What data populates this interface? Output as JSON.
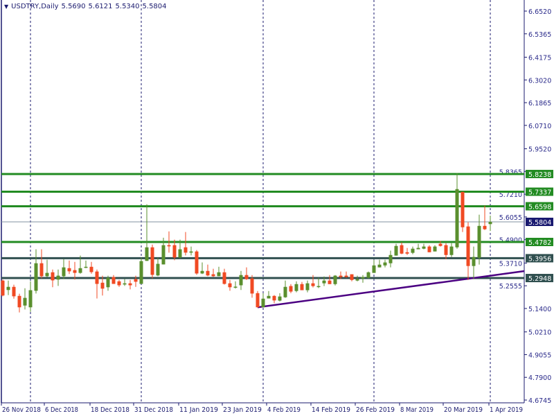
{
  "header": {
    "symbol": "USDTRY,Daily",
    "open": "5.5690",
    "high": "5.6121",
    "low": "5.5340",
    "close": "5.5804",
    "collapse_icon": "triangle-down-icon"
  },
  "colors": {
    "bull": "#5a8f2e",
    "bear": "#f04a23",
    "resistance": "#228b22",
    "support": "#2f4f4f",
    "trendline": "#4b0082",
    "current_price": "#191970",
    "grid": "#1a1a6e",
    "axis_text": "#2a2a8a"
  },
  "chart_data": {
    "type": "candlestick",
    "symbol": "USDTRY",
    "timeframe": "Daily",
    "ylim": [
      4.6745,
      6.652
    ],
    "y_ticks": [
      "6.6520",
      "6.5365",
      "6.4175",
      "6.3020",
      "6.1865",
      "6.0710",
      "5.9520",
      "5.8365",
      "5.7210",
      "5.6055",
      "5.4900",
      "5.3710",
      "5.2555",
      "5.1400",
      "5.0210",
      "4.9055",
      "4.7900",
      "4.6745"
    ],
    "x_tick_labels": [
      "26 Nov 2018",
      "6 Dec 2018",
      "18 Dec 2018",
      "31 Dec 2018",
      "11 Jan 2019",
      "23 Jan 2019",
      "4 Feb 2019",
      "14 Feb 2019",
      "26 Feb 2019",
      "8 Mar 2019",
      "20 Mar 2019",
      "1 Apr 2019"
    ],
    "ohlc": [
      [
        5.282,
        5.287,
        5.202,
        5.206
      ],
      [
        5.234,
        5.282,
        5.208,
        5.25
      ],
      [
        5.25,
        5.261,
        5.19,
        5.202
      ],
      [
        5.204,
        5.215,
        5.12,
        5.146
      ],
      [
        5.155,
        5.243,
        5.135,
        5.194
      ],
      [
        5.146,
        5.278,
        5.123,
        5.233
      ],
      [
        5.23,
        5.441,
        5.216,
        5.37
      ],
      [
        5.37,
        5.441,
        5.293,
        5.304
      ],
      [
        5.304,
        5.388,
        5.3,
        5.321
      ],
      [
        5.324,
        5.338,
        5.248,
        5.283
      ],
      [
        5.287,
        5.338,
        5.255,
        5.307
      ],
      [
        5.304,
        5.391,
        5.289,
        5.349
      ],
      [
        5.345,
        5.384,
        5.315,
        5.329
      ],
      [
        5.335,
        5.377,
        5.287,
        5.321
      ],
      [
        5.321,
        5.409,
        5.317,
        5.345
      ],
      [
        5.349,
        5.384,
        5.345,
        5.352
      ],
      [
        5.352,
        5.377,
        5.317,
        5.325
      ],
      [
        5.328,
        5.338,
        5.191,
        5.265
      ],
      [
        5.271,
        5.307,
        5.206,
        5.241
      ],
      [
        5.248,
        5.307,
        5.23,
        5.296
      ],
      [
        5.3,
        5.31,
        5.265,
        5.265
      ],
      [
        5.278,
        5.285,
        5.25,
        5.258
      ],
      [
        5.262,
        5.289,
        5.255,
        5.268
      ],
      [
        5.268,
        5.285,
        5.237,
        5.258
      ],
      [
        5.289,
        5.307,
        5.25,
        5.276
      ],
      [
        5.265,
        5.399,
        5.265,
        5.381
      ],
      [
        5.382,
        5.67,
        5.382,
        5.451
      ],
      [
        5.451,
        5.465,
        5.293,
        5.311
      ],
      [
        5.308,
        5.398,
        5.304,
        5.367
      ],
      [
        5.364,
        5.5,
        5.364,
        5.462
      ],
      [
        5.462,
        5.532,
        5.424,
        5.456
      ],
      [
        5.462,
        5.49,
        5.385,
        5.399
      ],
      [
        5.399,
        5.49,
        5.396,
        5.441
      ],
      [
        5.451,
        5.529,
        5.41,
        5.424
      ],
      [
        5.424,
        5.455,
        5.41,
        5.43
      ],
      [
        5.43,
        5.437,
        5.311,
        5.318
      ],
      [
        5.318,
        5.374,
        5.315,
        5.331
      ],
      [
        5.331,
        5.363,
        5.304,
        5.308
      ],
      [
        5.314,
        5.342,
        5.301,
        5.304
      ],
      [
        5.304,
        5.352,
        5.304,
        5.324
      ],
      [
        5.324,
        5.342,
        5.262,
        5.265
      ],
      [
        5.268,
        5.285,
        5.23,
        5.248
      ],
      [
        5.248,
        5.278,
        5.241,
        5.251
      ],
      [
        5.258,
        5.331,
        5.234,
        5.31
      ],
      [
        5.31,
        5.349,
        5.285,
        5.289
      ],
      [
        5.293,
        5.31,
        5.195,
        5.216
      ],
      [
        5.218,
        5.229,
        5.146,
        5.146
      ],
      [
        5.146,
        5.218,
        5.146,
        5.19
      ],
      [
        5.191,
        5.229,
        5.191,
        5.204
      ],
      [
        5.204,
        5.208,
        5.167,
        5.181
      ],
      [
        5.18,
        5.218,
        5.176,
        5.201
      ],
      [
        5.197,
        5.282,
        5.194,
        5.25
      ],
      [
        5.254,
        5.264,
        5.218,
        5.226
      ],
      [
        5.229,
        5.278,
        5.222,
        5.264
      ],
      [
        5.264,
        5.275,
        5.233,
        5.233
      ],
      [
        5.233,
        5.282,
        5.222,
        5.268
      ],
      [
        5.268,
        5.31,
        5.247,
        5.254
      ],
      [
        5.25,
        5.296,
        5.244,
        5.254
      ],
      [
        5.268,
        5.303,
        5.254,
        5.282
      ],
      [
        5.282,
        5.31,
        5.264,
        5.264
      ],
      [
        5.264,
        5.31,
        5.257,
        5.307
      ],
      [
        5.307,
        5.328,
        5.289,
        5.3
      ],
      [
        5.307,
        5.328,
        5.296,
        5.3
      ],
      [
        5.314,
        5.314,
        5.278,
        5.285
      ],
      [
        5.282,
        5.307,
        5.278,
        5.289
      ],
      [
        5.293,
        5.31,
        5.271,
        5.3
      ],
      [
        5.296,
        5.328,
        5.293,
        5.324
      ],
      [
        5.321,
        5.388,
        5.321,
        5.359
      ],
      [
        5.349,
        5.388,
        5.349,
        5.363
      ],
      [
        5.359,
        5.388,
        5.349,
        5.374
      ],
      [
        5.37,
        5.434,
        5.349,
        5.412
      ],
      [
        5.409,
        5.469,
        5.409,
        5.458
      ],
      [
        5.462,
        5.476,
        5.416,
        5.419
      ],
      [
        5.426,
        5.448,
        5.412,
        5.419
      ],
      [
        5.423,
        5.455,
        5.416,
        5.444
      ],
      [
        5.441,
        5.469,
        5.441,
        5.448
      ],
      [
        5.444,
        5.469,
        5.441,
        5.455
      ],
      [
        5.455,
        5.462,
        5.426,
        5.426
      ],
      [
        5.43,
        5.462,
        5.43,
        5.455
      ],
      [
        5.469,
        5.483,
        5.455,
        5.458
      ],
      [
        5.462,
        5.472,
        5.391,
        5.412
      ],
      [
        5.412,
        5.472,
        5.402,
        5.455
      ],
      [
        5.451,
        5.828,
        5.444,
        5.747
      ],
      [
        5.733,
        5.733,
        5.529,
        5.553
      ],
      [
        5.557,
        5.578,
        5.285,
        5.356
      ],
      [
        5.356,
        5.455,
        5.289,
        5.402
      ],
      [
        5.398,
        5.617,
        5.363,
        5.56
      ],
      [
        5.56,
        5.663,
        5.539,
        5.543
      ],
      [
        5.569,
        5.6121,
        5.534,
        5.5804
      ]
    ],
    "horizontal_levels": [
      {
        "price": 5.8238,
        "label": "5.8238",
        "kind": "resistance"
      },
      {
        "price": 5.7337,
        "label": "5.7337",
        "kind": "resistance"
      },
      {
        "price": 5.6598,
        "label": "5.6598",
        "kind": "resistance"
      },
      {
        "price": 5.4782,
        "label": "5.4782",
        "kind": "resistance"
      },
      {
        "price": 5.3956,
        "label": "5.3956",
        "kind": "support"
      },
      {
        "price": 5.2948,
        "label": "5.2948",
        "kind": "support"
      }
    ],
    "current_price": {
      "price": 5.5804,
      "label": "5.5804"
    },
    "trendline": {
      "from": {
        "bar": 47,
        "price": 5.146
      },
      "to_price_at_right_edge": 5.33
    },
    "month_separators": [
      6,
      26,
      48,
      68,
      89
    ],
    "grid": false
  }
}
